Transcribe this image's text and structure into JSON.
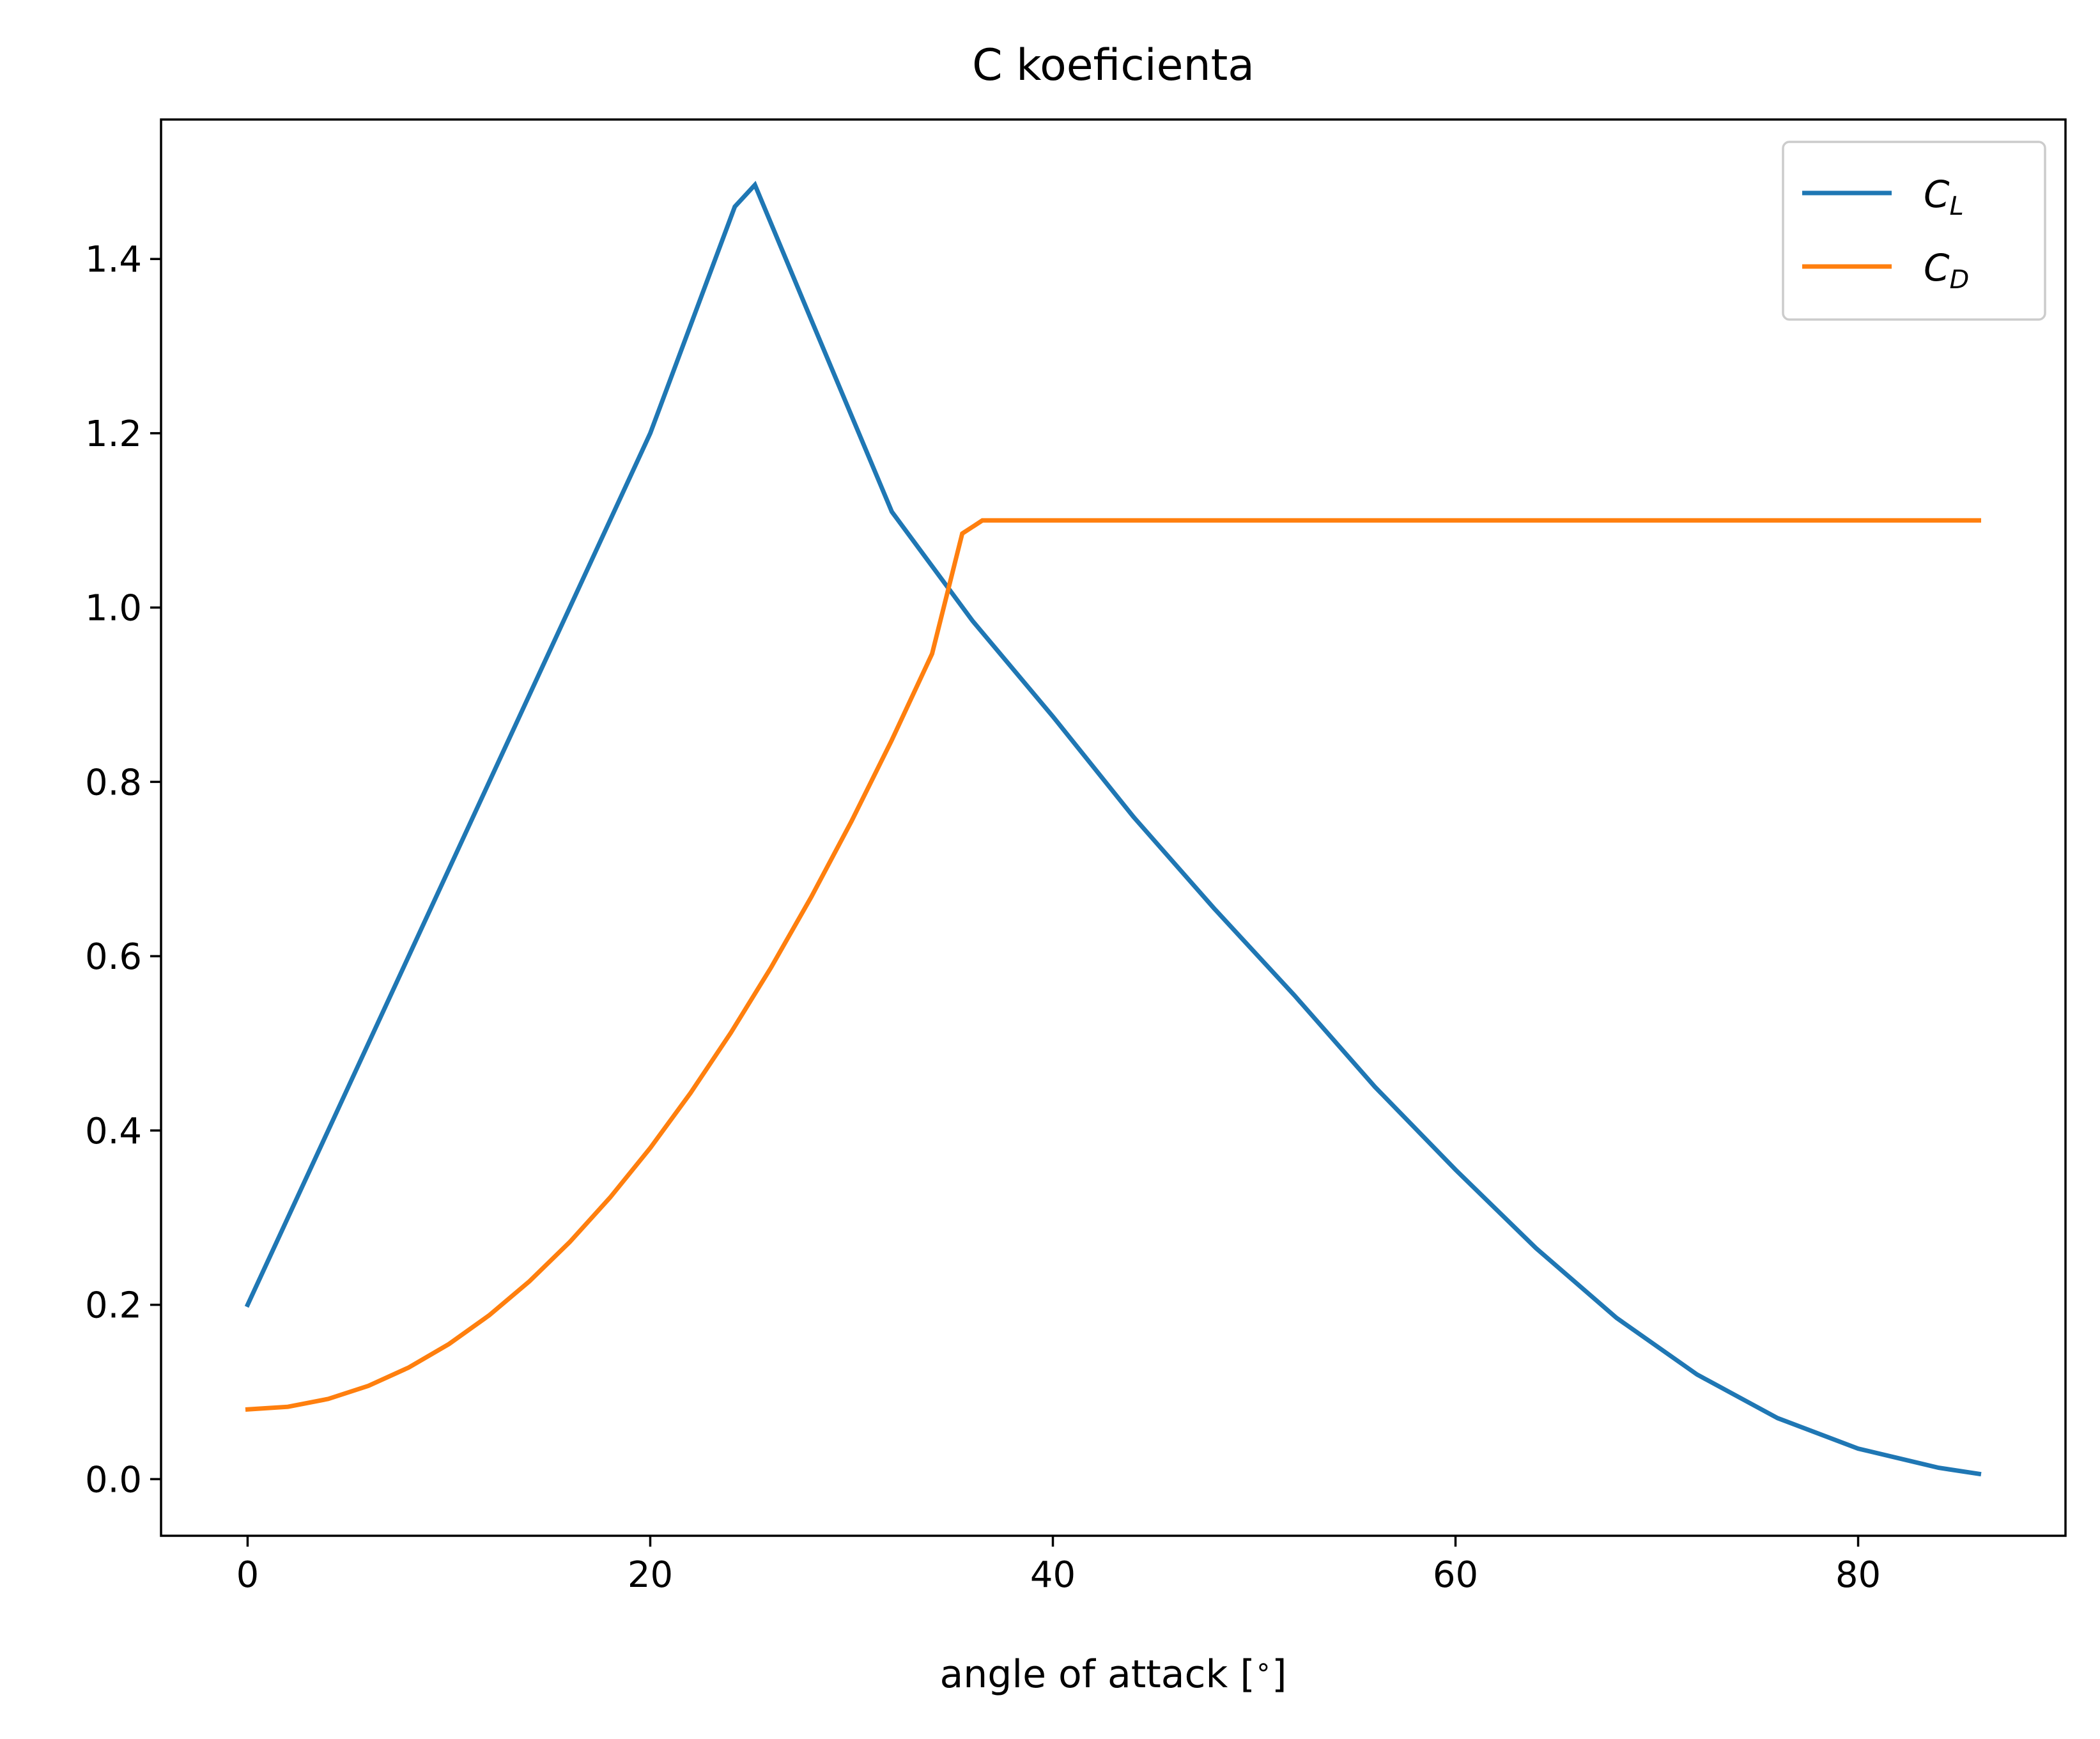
{
  "chart_data": {
    "type": "line",
    "title": "C koeficienta",
    "xlabel": "angle of attack [$^\\circ$]",
    "xlabel_display": {
      "prefix": "angle of attack [",
      "symbol": "∘",
      "suffix": "]"
    },
    "ylabel": "",
    "xlim": [
      -4.3,
      90.3
    ],
    "ylim": [
      -0.065,
      1.56
    ],
    "xticks": [
      0,
      20,
      40,
      60,
      80
    ],
    "xtick_labels": [
      "0",
      "20",
      "40",
      "60",
      "80"
    ],
    "yticks": [
      0.0,
      0.2,
      0.4,
      0.6,
      0.8,
      1.0,
      1.2,
      1.4
    ],
    "ytick_labels": [
      "0.0",
      "0.2",
      "0.4",
      "0.6",
      "0.8",
      "1.0",
      "1.2",
      "1.4"
    ],
    "grid": false,
    "legend": "top-right",
    "series": [
      {
        "name": "C_L",
        "legend_main": "C",
        "legend_sub": "L",
        "color": "#1f77b4",
        "x": [
          0,
          5,
          10,
          15,
          20,
          24.2,
          25.2,
          28,
          32,
          36,
          40,
          44,
          48,
          52,
          56,
          60,
          64,
          68,
          72,
          76,
          80,
          84,
          86
        ],
        "y": [
          0.2,
          0.45,
          0.7,
          0.95,
          1.2,
          1.46,
          1.485,
          1.33,
          1.11,
          0.985,
          0.875,
          0.76,
          0.655,
          0.555,
          0.45,
          0.355,
          0.265,
          0.185,
          0.12,
          0.07,
          0.035,
          0.013,
          0.006
        ]
      },
      {
        "name": "C_D",
        "legend_main": "C",
        "legend_sub": "D",
        "color": "#ff7f0e",
        "x": [
          0,
          2,
          4,
          6,
          8,
          10,
          12,
          14,
          16,
          18,
          20,
          22,
          24,
          26,
          28,
          30,
          32,
          34,
          35.5,
          36.5,
          40,
          50,
          60,
          70,
          80,
          86
        ],
        "y": [
          0.08,
          0.083,
          0.092,
          0.107,
          0.128,
          0.155,
          0.188,
          0.227,
          0.272,
          0.323,
          0.38,
          0.443,
          0.512,
          0.587,
          0.668,
          0.755,
          0.848,
          0.947,
          1.085,
          1.1,
          1.1,
          1.1,
          1.1,
          1.1,
          1.1,
          1.1
        ]
      }
    ]
  }
}
